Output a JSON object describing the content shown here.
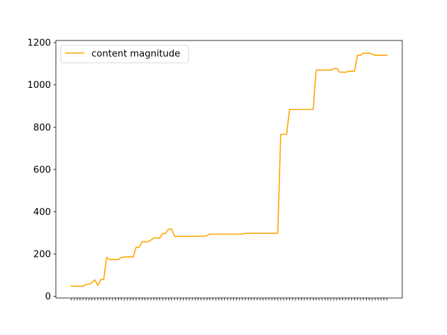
{
  "chart_data": {
    "type": "line",
    "title": "",
    "xlabel": "",
    "ylabel": "",
    "ylim": [
      -8,
      1210
    ],
    "yticks": [
      0,
      200,
      400,
      600,
      800,
      1000,
      1200
    ],
    "x_tick_labels_visible": false,
    "grid": false,
    "legend_position": "top-left",
    "series": [
      {
        "name": "content magnitude",
        "color": "#ffa500",
        "values": [
          48,
          48,
          48,
          48,
          48,
          56,
          58,
          64,
          78,
          52,
          80,
          80,
          184,
          174,
          174,
          174,
          174,
          184,
          186,
          186,
          186,
          186,
          232,
          232,
          258,
          258,
          258,
          266,
          276,
          276,
          276,
          298,
          298,
          318,
          318,
          284,
          284,
          284,
          284,
          284,
          284,
          284,
          284,
          284,
          284,
          284,
          288,
          294,
          294,
          294,
          294,
          294,
          294,
          294,
          294,
          294,
          294,
          294,
          294,
          298,
          298,
          298,
          298,
          298,
          298,
          298,
          298,
          298,
          298,
          298,
          298,
          766,
          766,
          766,
          884,
          884,
          884,
          884,
          884,
          884,
          884,
          884,
          884,
          1070,
          1070,
          1070,
          1070,
          1070,
          1070,
          1076,
          1078,
          1060,
          1060,
          1060,
          1064,
          1064,
          1064,
          1140,
          1140,
          1150,
          1150,
          1150,
          1146,
          1140,
          1140,
          1140,
          1140,
          1140
        ]
      }
    ]
  }
}
